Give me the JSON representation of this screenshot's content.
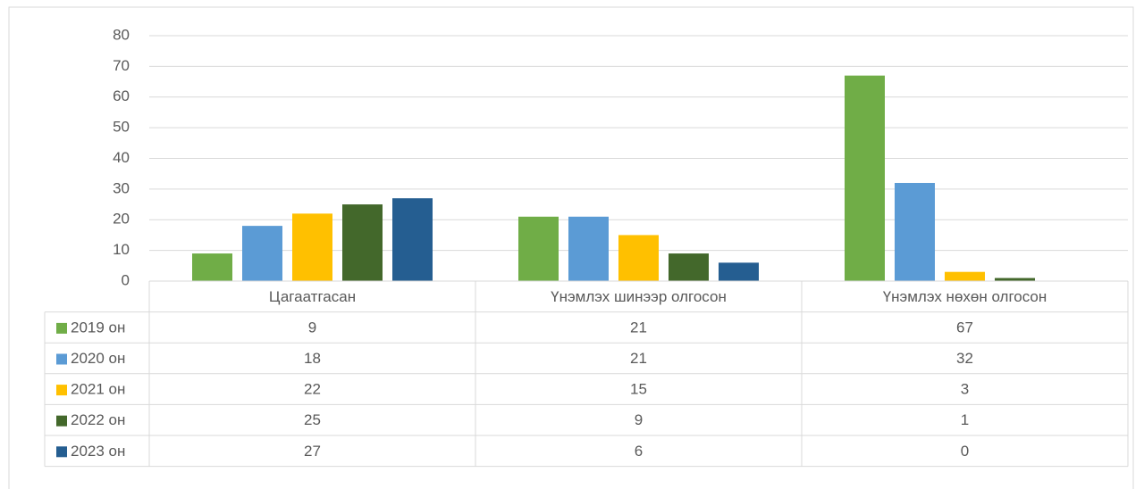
{
  "chart_data": {
    "type": "bar",
    "categories": [
      "Цагаатгасан",
      "Үнэмлэх шинээр олгосон",
      "Үнэмлэх нөхөн олгосон"
    ],
    "series": [
      {
        "name": "2019 он",
        "color": "#70ad47",
        "values": [
          9,
          21,
          67
        ]
      },
      {
        "name": "2020 он",
        "color": "#5b9bd5",
        "values": [
          18,
          21,
          32
        ]
      },
      {
        "name": "2021 он",
        "color": "#ffc000",
        "values": [
          22,
          15,
          3
        ]
      },
      {
        "name": "2022 он",
        "color": "#43682b",
        "values": [
          25,
          9,
          1
        ]
      },
      {
        "name": "2023 он",
        "color": "#255e91",
        "values": [
          27,
          6,
          0
        ]
      }
    ],
    "ylim": [
      0,
      80
    ],
    "yticks": [
      0,
      10,
      20,
      30,
      40,
      50,
      60,
      70,
      80
    ],
    "grid": true,
    "data_table": true
  }
}
